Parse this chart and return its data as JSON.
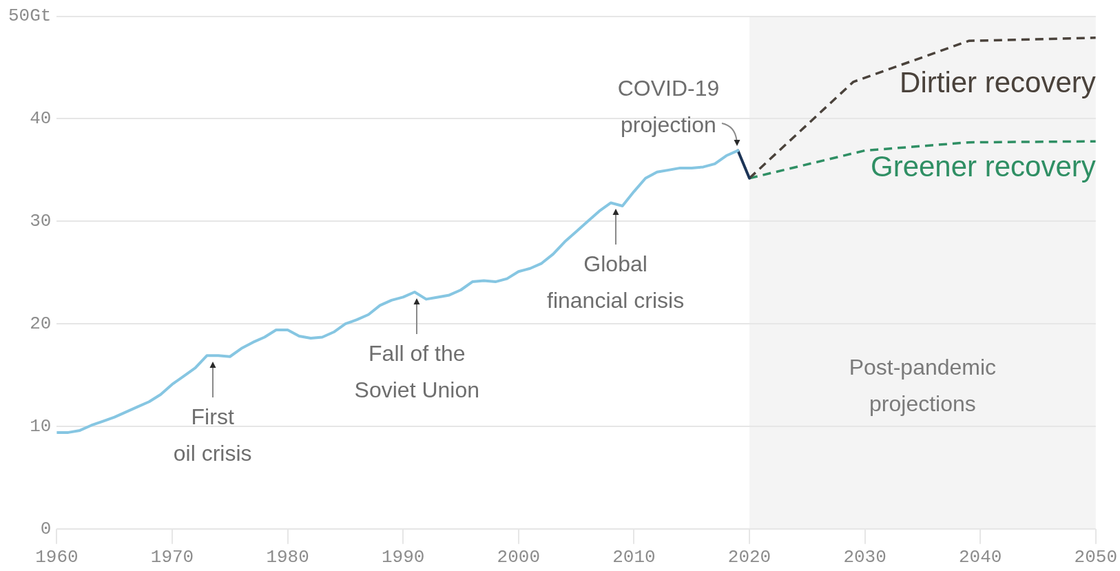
{
  "chart_data": {
    "type": "line",
    "xlim": [
      1960,
      2050
    ],
    "xticks": [
      1960,
      1970,
      1980,
      1990,
      2000,
      2010,
      2020,
      2030,
      2040,
      2050
    ],
    "ylim": [
      0,
      50
    ],
    "yticks": [
      0,
      10,
      20,
      30,
      40,
      {
        "value": 50,
        "label": "50Gt"
      }
    ],
    "grid": "y",
    "marker": "none",
    "line_style": "solid",
    "series": [
      {
        "color": "#86c6e2",
        "x": [
          1960,
          1961,
          1962,
          1963,
          1964,
          1965,
          1966,
          1967,
          1968,
          1969,
          1970,
          1971,
          1972,
          1973,
          1974,
          1975,
          1976,
          1977,
          1978,
          1979,
          1980,
          1981,
          1982,
          1983,
          1984,
          1985,
          1986,
          1987,
          1988,
          1989,
          1990,
          1991,
          1992,
          1993,
          1994,
          1995,
          1996,
          1997,
          1998,
          1999,
          2000,
          2001,
          2002,
          2003,
          2004,
          2005,
          2006,
          2007,
          2008,
          2009,
          2010,
          2011,
          2012,
          2013,
          2014,
          2015,
          2016,
          2017,
          2018,
          2019
        ],
        "values": [
          9.4,
          9.4,
          9.6,
          10.1,
          10.5,
          10.9,
          11.4,
          11.9,
          12.4,
          13.1,
          14.1,
          14.9,
          15.7,
          16.9,
          16.9,
          16.8,
          17.6,
          18.2,
          18.7,
          19.4,
          19.4,
          18.8,
          18.6,
          18.7,
          19.2,
          20.0,
          20.4,
          20.9,
          21.8,
          22.3,
          22.6,
          23.1,
          22.4,
          22.6,
          22.8,
          23.3,
          24.1,
          24.2,
          24.1,
          24.4,
          25.1,
          25.4,
          25.9,
          26.8,
          28.0,
          29.0,
          30.0,
          31.0,
          31.8,
          31.5,
          32.9,
          34.2,
          34.8,
          35.0,
          35.2,
          35.2,
          35.3,
          35.6,
          36.4,
          36.9
        ]
      },
      {
        "color": "#1d3557",
        "x": [
          2019,
          2020
        ],
        "values": [
          36.9,
          34.2
        ]
      },
      {
        "name": "Dirtier recovery",
        "color": "#4a423b",
        "line_style": "dashed",
        "x": [
          2020,
          2029,
          2039,
          2050
        ],
        "values": [
          34.2,
          43.6,
          47.6,
          47.9
        ]
      },
      {
        "name": "Greener recovery",
        "color": "#2f8f64",
        "line_style": "dashed",
        "x": [
          2020,
          2030,
          2039,
          2050
        ],
        "values": [
          34.2,
          36.9,
          37.7,
          37.8
        ]
      }
    ],
    "bands": [
      {
        "axis": "x",
        "from": 2020,
        "to": 2050,
        "label": "Post-pandemic\nprojections",
        "color": "#f4f4f4"
      }
    ],
    "annotations": [
      {
        "text": "First\noil crisis",
        "x": 1973.5,
        "y": 16.9
      },
      {
        "text": "Fall of the\nSoviet Union",
        "x": 1991.2,
        "y": 23.1
      },
      {
        "text": "Global\nfinancial crisis",
        "x": 2008.4,
        "y": 31.8
      },
      {
        "text": "COVID-19\nprojection",
        "x": 2019,
        "y": 36.9
      }
    ]
  }
}
